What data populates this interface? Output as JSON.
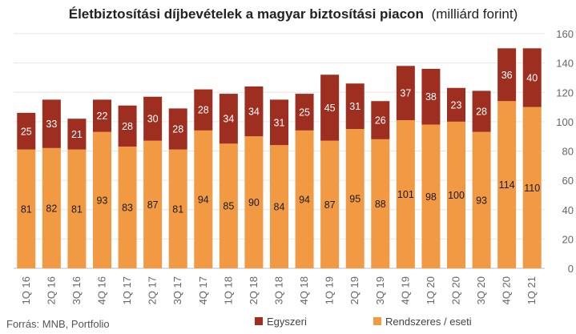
{
  "chart_data": {
    "type": "bar",
    "stacked": true,
    "title": "Életbiztosítási díjbevételek a magyar biztosítási piacon",
    "subtitle": "(milliárd forint)",
    "categories": [
      "1Q 16",
      "2Q 16",
      "3Q 16",
      "4Q 16",
      "1Q 17",
      "2Q 17",
      "3Q 17",
      "4Q 17",
      "1Q 18",
      "2Q 18",
      "3Q 18",
      "4Q 18",
      "1Q 19",
      "2Q 19",
      "3Q 19",
      "4Q 19",
      "1Q 20",
      "2Q 20",
      "3Q 20",
      "4Q 20",
      "1Q 21"
    ],
    "series": [
      {
        "name": "Rendszeres / eseti",
        "color": "#F29A43",
        "values": [
          81,
          82,
          81,
          93,
          83,
          87,
          81,
          94,
          85,
          90,
          84,
          94,
          87,
          95,
          88,
          101,
          98,
          100,
          93,
          114,
          110
        ]
      },
      {
        "name": "Egyszeri",
        "color": "#9E2F20",
        "values": [
          25,
          33,
          21,
          22,
          28,
          30,
          28,
          28,
          34,
          34,
          31,
          25,
          45,
          31,
          26,
          37,
          38,
          23,
          28,
          36,
          40
        ]
      }
    ],
    "ylim": [
      0,
      160
    ],
    "yticks": [
      0,
      20,
      40,
      60,
      80,
      100,
      120,
      140,
      160
    ],
    "y_axis_side": "right",
    "grid": true,
    "legend": [
      {
        "label": "Egyszeri",
        "color": "#9E2F20"
      },
      {
        "label": "Rendszeres / eseti",
        "color": "#F29A43"
      }
    ],
    "legend_placement": "bottom"
  },
  "source": "Forrás: MNB, Portfolio"
}
